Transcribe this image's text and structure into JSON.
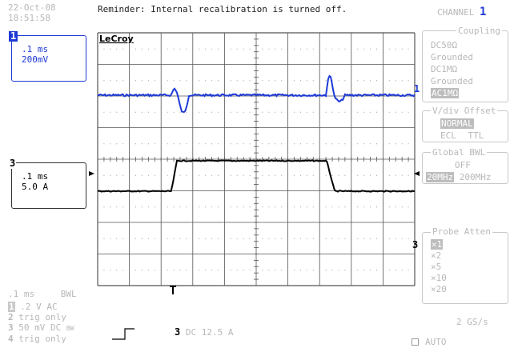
{
  "header": {
    "date": "22-Oct-08",
    "time": "18:51:58",
    "reminder": "Reminder: Internal recalibration is turned off.",
    "channel_label": "CHANNEL",
    "channel_number": "1"
  },
  "scope": {
    "logo": "LeCroy",
    "channel1_marker": "1",
    "channel3_marker": "3",
    "trigger_marker": "T",
    "colors": {
      "ch1": "#1e3ad6",
      "ch3": "#000000",
      "grid": "#555555",
      "dots": "#9a9a9a"
    }
  },
  "traces": {
    "ch1": {
      "badge": "1",
      "timebase": ".1 ms",
      "scale": "200mV"
    },
    "ch3": {
      "badge": "3",
      "timebase": ".1 ms",
      "scale": "5.0 A"
    }
  },
  "menu": {
    "coupling": {
      "title": "Coupling",
      "options": [
        "DC50Ω",
        "Grounded",
        "DC1MΩ",
        "Grounded",
        "AC1MΩ"
      ],
      "selected": "AC1MΩ"
    },
    "vdiv": {
      "title": "V/div Offset",
      "normal": "NORMAL",
      "ecl": "ECL",
      "ttl": "TTL"
    },
    "global_bwl": {
      "title": "Global BWL",
      "off": "OFF",
      "opt20": "20MHz",
      "opt200": "200MHz"
    },
    "probe_atten": {
      "title": "Probe Atten",
      "options": [
        "×1",
        "×2",
        "×5",
        "×10",
        "×20"
      ],
      "selected": "×1"
    }
  },
  "status": {
    "timebase": ".1 ms",
    "bwl": "BWL",
    "line1_num": "1",
    "line1_text": ".2  V  AC",
    "line2_num": "2",
    "line2_text": "trig only",
    "line3_num": "3",
    "line3_text": "50 mV  DC",
    "line3_suffix": "BW",
    "line4_num": "4",
    "line4_text": "trig only",
    "trigger_source": "3",
    "trigger_text": "DC 12.5 A",
    "sample_rate": "2 GS/s",
    "mode": "AUTO"
  }
}
